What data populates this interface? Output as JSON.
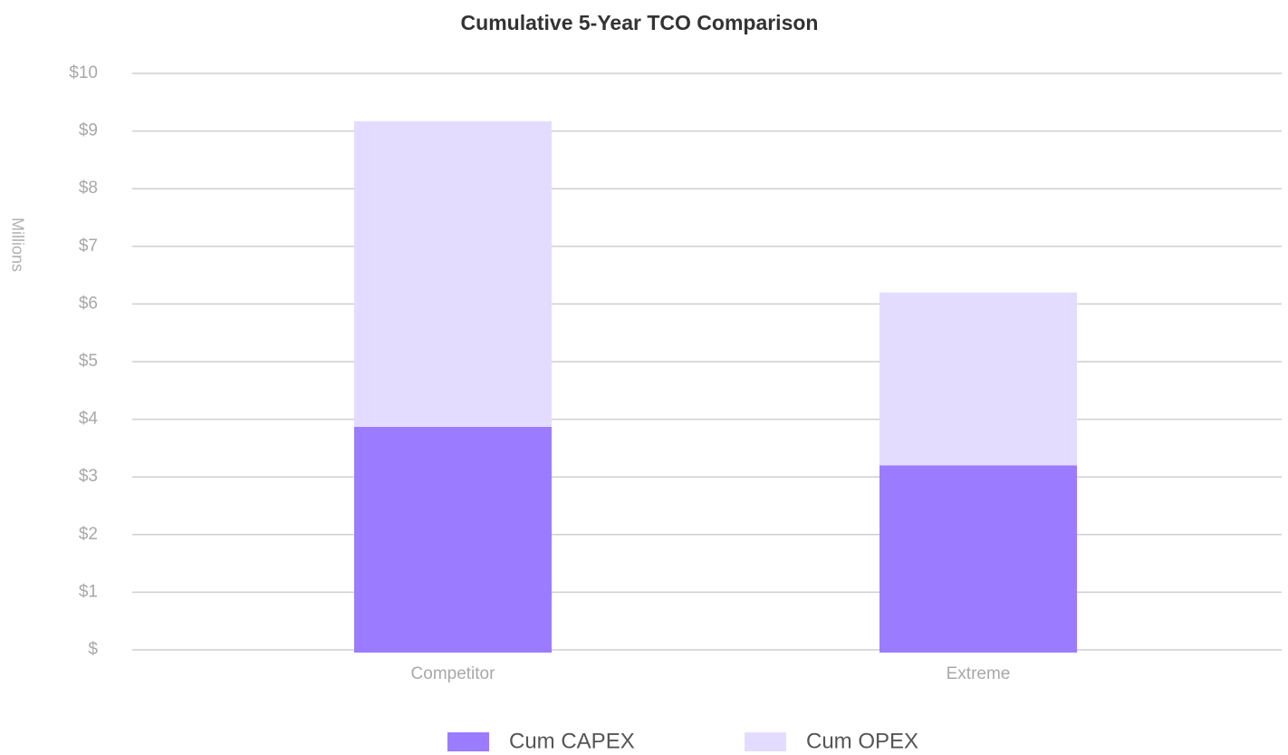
{
  "chart_data": {
    "type": "stacked_bar",
    "title": "Cumulative 5-Year TCO Comparison",
    "ylabel": "Millions",
    "categories": [
      "Competitor",
      "Extreme"
    ],
    "series": [
      {
        "name": "Cum CAPEX",
        "color": "#9b7bff",
        "values": [
          3.87,
          3.2
        ]
      },
      {
        "name": "Cum OPEX",
        "color": "#e4dcff",
        "values": [
          5.3,
          3.0
        ]
      }
    ],
    "ylim": [
      0,
      10
    ],
    "yticks": [
      {
        "value": 0,
        "label": "$"
      },
      {
        "value": 1,
        "label": "$1"
      },
      {
        "value": 2,
        "label": "$2"
      },
      {
        "value": 3,
        "label": "$3"
      },
      {
        "value": 4,
        "label": "$4"
      },
      {
        "value": 5,
        "label": "$5"
      },
      {
        "value": 6,
        "label": "$6"
      },
      {
        "value": 7,
        "label": "$7"
      },
      {
        "value": 8,
        "label": "$8"
      },
      {
        "value": 9,
        "label": "$9"
      },
      {
        "value": 10,
        "label": "$10"
      }
    ],
    "grid": true,
    "legend": "bottom"
  }
}
